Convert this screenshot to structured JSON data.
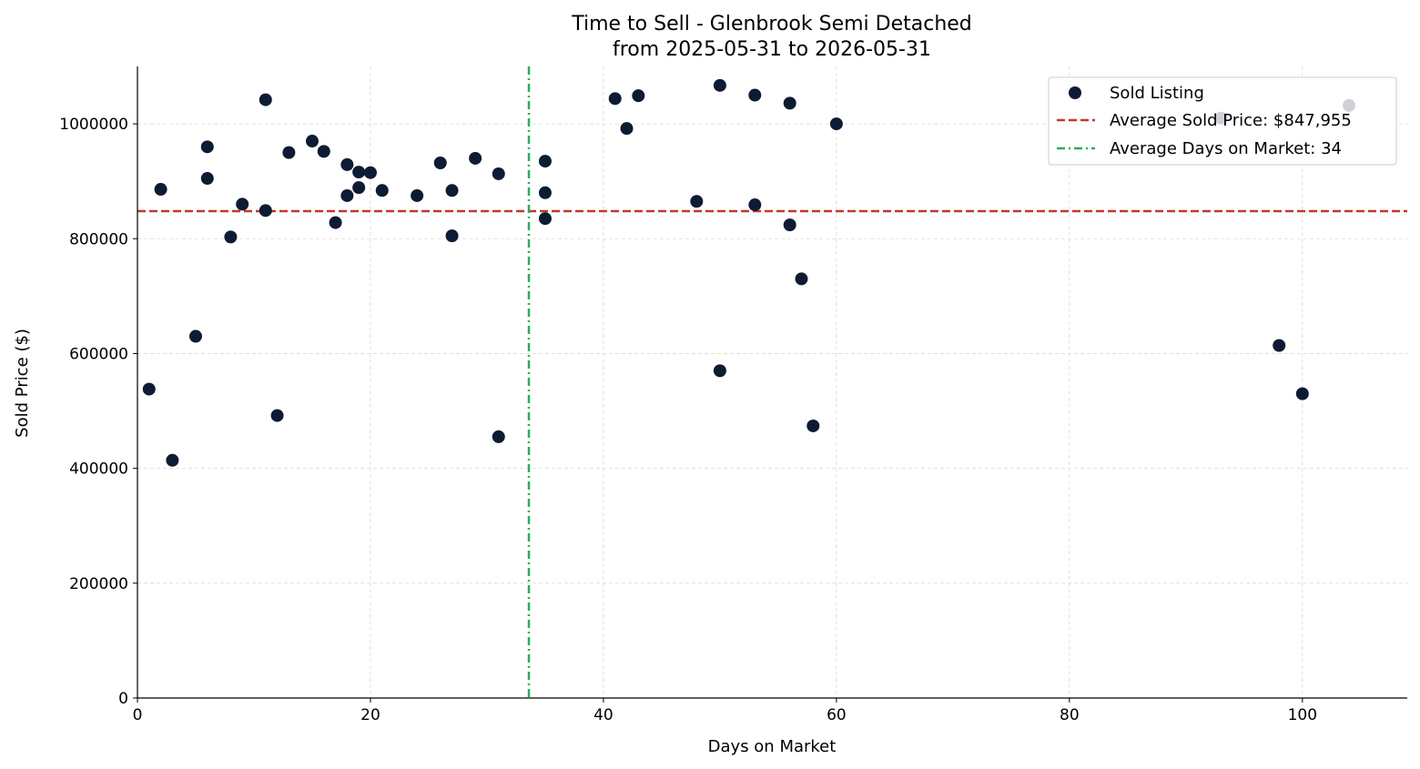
{
  "chart_data": {
    "type": "scatter",
    "title": "Time to Sell - Glenbrook Semi Detached",
    "subtitle": "from 2025-05-31 to 2026-05-31",
    "xlabel": "Days on Market",
    "ylabel": "Sold Price ($)",
    "xlim": [
      0,
      109
    ],
    "ylim": [
      0,
      1100000
    ],
    "xticks": [
      0,
      20,
      40,
      60,
      80,
      100
    ],
    "yticks": [
      0,
      200000,
      400000,
      600000,
      800000,
      1000000
    ],
    "grid": true,
    "legend_position": "top-right",
    "legend": {
      "sold_label": "Sold Listing",
      "avg_price_label": "Average Sold Price: $847,955",
      "avg_days_label": "Average Days on Market: 34"
    },
    "average_price": 847955,
    "average_days": 33.6,
    "colors": {
      "points": "#0d1b33",
      "avg_price_line": "#c0392b",
      "avg_days_line": "#27ae60",
      "grid": "#d9d9d9"
    },
    "series": [
      {
        "name": "Sold Listing",
        "points": [
          [
            1,
            538000
          ],
          [
            2,
            886000
          ],
          [
            3,
            414000
          ],
          [
            5,
            630000
          ],
          [
            6,
            960000
          ],
          [
            6,
            905000
          ],
          [
            8,
            803000
          ],
          [
            9,
            860000
          ],
          [
            11,
            1042000
          ],
          [
            11,
            849000
          ],
          [
            12,
            492000
          ],
          [
            13,
            950000
          ],
          [
            15,
            970000
          ],
          [
            16,
            952000
          ],
          [
            17,
            828000
          ],
          [
            18,
            929000
          ],
          [
            18,
            875000
          ],
          [
            19,
            916000
          ],
          [
            19,
            889000
          ],
          [
            20,
            915000
          ],
          [
            21,
            884000
          ],
          [
            24,
            875000
          ],
          [
            26,
            932000
          ],
          [
            27,
            884000
          ],
          [
            27,
            805000
          ],
          [
            29,
            940000
          ],
          [
            31,
            913000
          ],
          [
            31,
            455000
          ],
          [
            35,
            935000
          ],
          [
            35,
            880000
          ],
          [
            35,
            835000
          ],
          [
            41,
            1044000
          ],
          [
            42,
            992000
          ],
          [
            43,
            1049000
          ],
          [
            48,
            865000
          ],
          [
            50,
            1067000
          ],
          [
            50,
            570000
          ],
          [
            53,
            1050000
          ],
          [
            53,
            859000
          ],
          [
            56,
            1036000
          ],
          [
            56,
            824000
          ],
          [
            57,
            730000
          ],
          [
            58,
            474000
          ],
          [
            60,
            1000000
          ],
          [
            93,
            1010000
          ],
          [
            98,
            614000
          ],
          [
            100,
            530000
          ],
          [
            104,
            1032000
          ]
        ]
      }
    ]
  }
}
